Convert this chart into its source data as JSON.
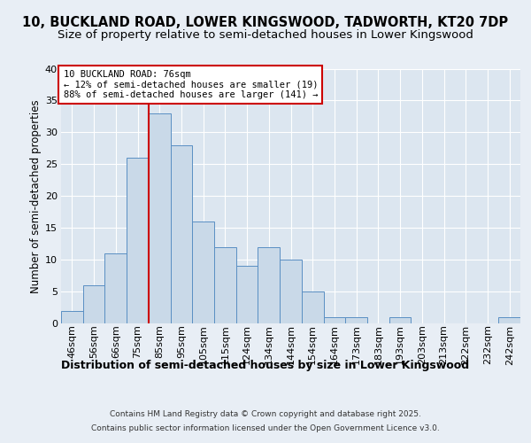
{
  "title": "10, BUCKLAND ROAD, LOWER KINGSWOOD, TADWORTH, KT20 7DP",
  "subtitle": "Size of property relative to semi-detached houses in Lower Kingswood",
  "xlabel": "Distribution of semi-detached houses by size in Lower Kingswood",
  "ylabel": "Number of semi-detached properties",
  "bar_labels": [
    "46sqm",
    "56sqm",
    "66sqm",
    "75sqm",
    "85sqm",
    "95sqm",
    "105sqm",
    "115sqm",
    "124sqm",
    "134sqm",
    "144sqm",
    "154sqm",
    "164sqm",
    "173sqm",
    "183sqm",
    "193sqm",
    "203sqm",
    "213sqm",
    "222sqm",
    "232sqm",
    "242sqm"
  ],
  "bar_values": [
    2,
    6,
    11,
    26,
    33,
    28,
    16,
    12,
    9,
    12,
    10,
    5,
    1,
    1,
    0,
    1,
    0,
    0,
    0,
    0,
    1
  ],
  "bar_color": "#c9d9e8",
  "bar_edge_color": "#5a8fc3",
  "property_line_x": 3.5,
  "property_label": "10 BUCKLAND ROAD: 76sqm",
  "annotation_line1": "← 12% of semi-detached houses are smaller (19)",
  "annotation_line2": "88% of semi-detached houses are larger (141) →",
  "vline_color": "#cc0000",
  "annotation_box_edge": "#cc0000",
  "ylim": [
    0,
    40
  ],
  "yticks": [
    0,
    5,
    10,
    15,
    20,
    25,
    30,
    35,
    40
  ],
  "background_color": "#e8eef5",
  "plot_bg_color": "#dce6f0",
  "grid_color": "#ffffff",
  "footer_line1": "Contains HM Land Registry data © Crown copyright and database right 2025.",
  "footer_line2": "Contains public sector information licensed under the Open Government Licence v3.0.",
  "title_fontsize": 10.5,
  "subtitle_fontsize": 9.5,
  "xlabel_fontsize": 9,
  "ylabel_fontsize": 8.5,
  "tick_fontsize": 8,
  "annotation_fontsize": 7.5
}
